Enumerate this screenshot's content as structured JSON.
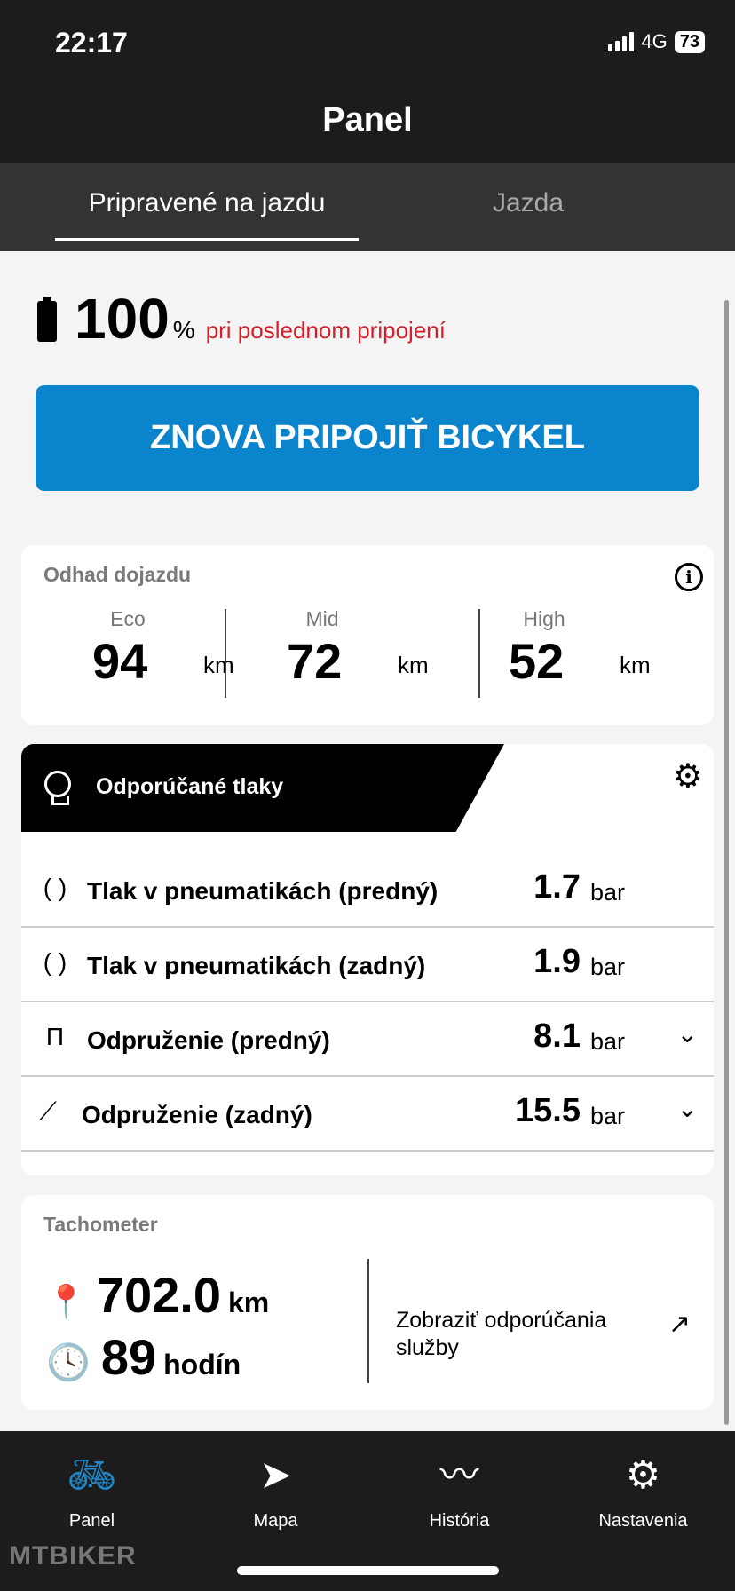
{
  "status": {
    "time": "22:17",
    "network": "4G",
    "battery": "73"
  },
  "header": {
    "title": "Panel"
  },
  "tabs": [
    {
      "label": "Pripravené na jazdu",
      "active": true
    },
    {
      "label": "Jazda",
      "active": false
    }
  ],
  "battery": {
    "percent": "100",
    "unit": "%",
    "note": "pri poslednom pripojení"
  },
  "reconnect_button": "ZNOVA PRIPOJIŤ BICYKEL",
  "range": {
    "title": "Odhad dojazdu",
    "modes": [
      {
        "mode": "Eco",
        "value": "94",
        "unit": "km"
      },
      {
        "mode": "Mid",
        "value": "72",
        "unit": "km"
      },
      {
        "mode": "High",
        "value": "52",
        "unit": "km"
      }
    ]
  },
  "pressures": {
    "title": "Odporúčané tlaky",
    "rows": [
      {
        "label": "Tlak v pneumatikách (predný)",
        "value": "1.7",
        "unit": "bar",
        "icon": "tire-icon"
      },
      {
        "label": "Tlak v pneumatikách (zadný)",
        "value": "1.9",
        "unit": "bar",
        "icon": "tire-icon"
      },
      {
        "label": "Odpruženie (predný)",
        "value": "8.1",
        "unit": "bar",
        "icon": "fork-icon"
      },
      {
        "label": "Odpruženie (zadný)",
        "value": "15.5",
        "unit": "bar",
        "icon": "shock-icon"
      }
    ]
  },
  "tachometer": {
    "title": "Tachometer",
    "distance": "702.0",
    "distance_unit": "km",
    "hours": "89",
    "hours_unit": "hodín",
    "service_link": "Zobraziť odporúčania služby"
  },
  "bottom_nav": [
    {
      "label": "Panel",
      "active": true
    },
    {
      "label": "Mapa"
    },
    {
      "label": "História"
    },
    {
      "label": "Nastavenia"
    }
  ],
  "watermark": "MTBIKER",
  "colors": {
    "accent": "#0a84cd",
    "warning": "#d4202a"
  }
}
